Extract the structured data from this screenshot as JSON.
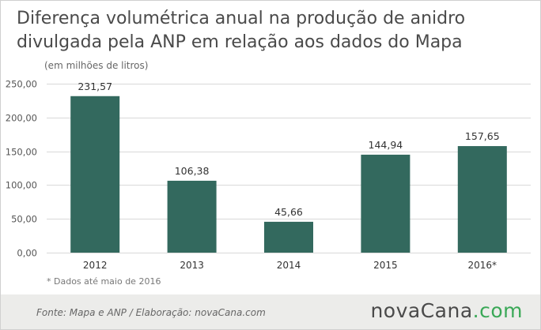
{
  "header": {
    "title": "Diferença volumétrica anual na produção de anidro divulgada pela ANP em relação aos dados do Mapa",
    "subtitle": "(em milhões de litros)"
  },
  "footnote": "* Dados até maio de 2016",
  "footer": {
    "source": "Fonte:  Mapa  e  ANP  /  Elaboração:  novaCana.com",
    "logo_main": "novaCana",
    "logo_tld": ".com"
  },
  "colors": {
    "bar": "#33695e",
    "grid": "#d9d9d9",
    "axis_text": "#555555",
    "label_text": "#333333"
  },
  "chart_data": {
    "type": "bar",
    "categories": [
      "2012",
      "2013",
      "2014",
      "2015",
      "2016*"
    ],
    "values": [
      231.57,
      106.38,
      45.66,
      144.94,
      157.65
    ],
    "value_labels": [
      "231,57",
      "106,38",
      "45,66",
      "144,94",
      "157,65"
    ],
    "ylim": [
      0,
      250
    ],
    "yticks": [
      0,
      50,
      100,
      150,
      200,
      250
    ],
    "ytick_labels": [
      "0,00",
      "50,00",
      "100,00",
      "150,00",
      "200,00",
      "250,00"
    ],
    "grid": true
  }
}
